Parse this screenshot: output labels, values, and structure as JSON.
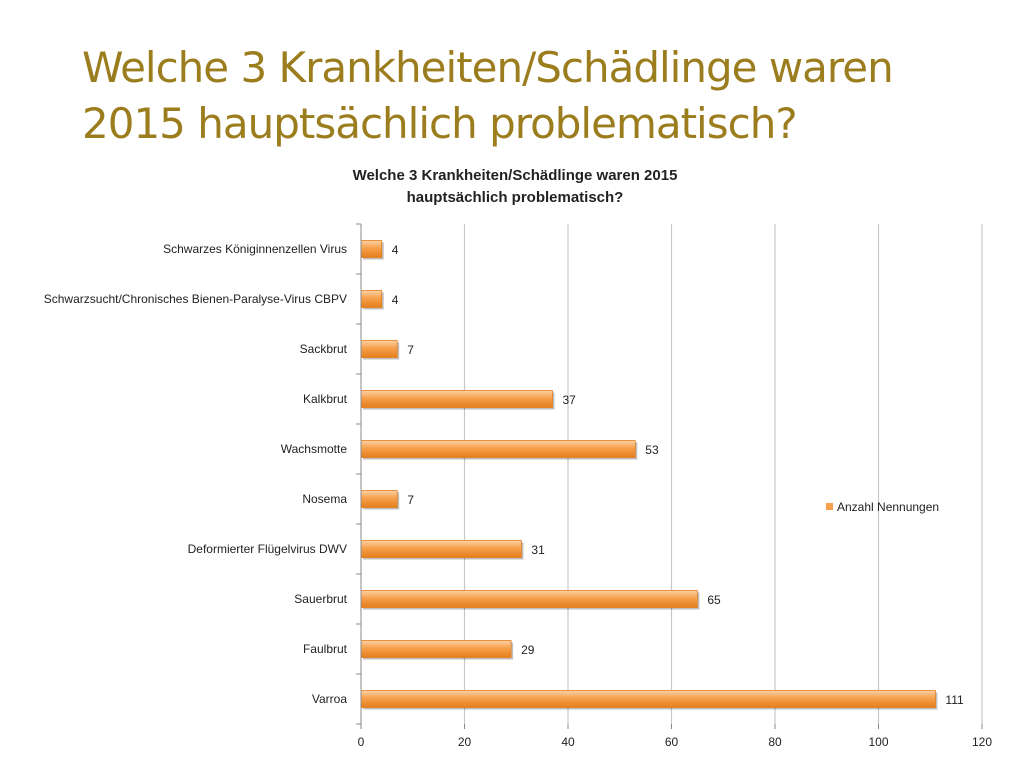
{
  "slide": {
    "title": "Welche 3 Krankheiten/Schädlinge waren 2015 hauptsächlich problematisch?"
  },
  "colors": {
    "title": "#9b7d1e",
    "bar_light": "#fcd2a6",
    "bar_mid": "#f6a04c",
    "bar_dark": "#e57e1c",
    "grid": "#c8c8c8",
    "axis": "#888888"
  },
  "chart_data": {
    "type": "bar",
    "orientation": "horizontal",
    "title_lines": [
      "Welche 3 Krankheiten/Schädlinge waren 2015",
      "hauptsächlich problematisch?"
    ],
    "categories": [
      "Schwarzes Königinnenzellen Virus",
      "Schwarzsucht/Chronisches Bienen-Paralyse-Virus CBPV",
      "Sackbrut",
      "Kalkbrut",
      "Wachsmotte",
      "Nosema",
      "Deformierter Flügelvirus DWV",
      "Sauerbrut",
      "Faulbrut",
      "Varroa"
    ],
    "series": [
      {
        "name": "Anzahl Nennungen",
        "values": [
          4,
          4,
          7,
          37,
          53,
          7,
          31,
          65,
          29,
          111
        ]
      }
    ],
    "xlim": [
      0,
      120
    ],
    "xticks": [
      0,
      20,
      40,
      60,
      80,
      100,
      120
    ],
    "grid": true,
    "legend": "right",
    "data_labels": true
  }
}
